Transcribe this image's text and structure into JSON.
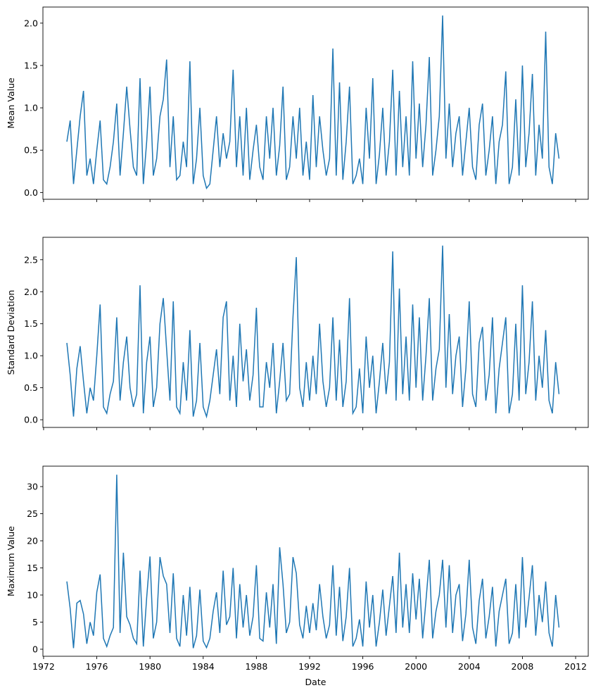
{
  "chart_data": [
    {
      "type": "line",
      "ylabel": "Mean Value",
      "x": [
        1973.75,
        1974,
        1974.25,
        1974.5,
        1974.75,
        1975,
        1975.25,
        1975.5,
        1975.75,
        1976,
        1976.25,
        1976.5,
        1976.75,
        1977,
        1977.25,
        1977.5,
        1977.75,
        1978,
        1978.25,
        1978.5,
        1978.75,
        1979,
        1979.25,
        1979.5,
        1979.75,
        1980,
        1980.25,
        1980.5,
        1980.75,
        1981,
        1981.25,
        1981.5,
        1981.75,
        1982,
        1982.25,
        1982.5,
        1982.75,
        1983,
        1983.25,
        1983.5,
        1983.75,
        1984,
        1984.25,
        1984.5,
        1984.75,
        1985,
        1985.25,
        1985.5,
        1985.75,
        1986,
        1986.25,
        1986.5,
        1986.75,
        1987,
        1987.25,
        1987.5,
        1987.75,
        1988,
        1988.25,
        1988.5,
        1988.75,
        1989,
        1989.25,
        1989.5,
        1989.75,
        1990,
        1990.25,
        1990.5,
        1990.75,
        1991,
        1991.25,
        1991.5,
        1991.75,
        1992,
        1992.25,
        1992.5,
        1992.75,
        1993,
        1993.25,
        1993.5,
        1993.75,
        1994,
        1994.25,
        1994.5,
        1994.75,
        1995,
        1995.25,
        1995.5,
        1995.75,
        1996,
        1996.25,
        1996.5,
        1996.75,
        1997,
        1997.25,
        1997.5,
        1997.75,
        1998,
        1998.25,
        1998.5,
        1998.75,
        1999,
        1999.25,
        1999.5,
        1999.75,
        2000,
        2000.25,
        2000.5,
        2000.75,
        2001,
        2001.25,
        2001.5,
        2001.75,
        2002,
        2002.25,
        2002.5,
        2002.75,
        2003,
        2003.25,
        2003.5,
        2003.75,
        2004,
        2004.25,
        2004.5,
        2004.75,
        2005,
        2005.25,
        2005.5,
        2005.75,
        2006,
        2006.25,
        2006.5,
        2006.75,
        2007,
        2007.25,
        2007.5,
        2007.75,
        2008,
        2008.25,
        2008.5,
        2008.75,
        2009,
        2009.25,
        2009.5,
        2009.75,
        2010,
        2010.25,
        2010.5,
        2010.75
      ],
      "series": [
        {
          "name": "Mean Value",
          "color": "#1f77b4",
          "values": [
            0.6,
            0.85,
            0.1,
            0.5,
            0.9,
            1.2,
            0.2,
            0.4,
            0.1,
            0.5,
            0.85,
            0.15,
            0.1,
            0.3,
            0.6,
            1.05,
            0.2,
            0.7,
            1.25,
            0.75,
            0.3,
            0.2,
            1.35,
            0.1,
            0.6,
            1.25,
            0.2,
            0.4,
            0.9,
            1.1,
            1.57,
            0.3,
            0.9,
            0.15,
            0.2,
            0.6,
            0.3,
            1.55,
            0.1,
            0.4,
            1.0,
            0.2,
            0.05,
            0.1,
            0.5,
            0.9,
            0.3,
            0.7,
            0.4,
            0.6,
            1.45,
            0.3,
            0.9,
            0.2,
            1.0,
            0.15,
            0.5,
            0.8,
            0.3,
            0.15,
            0.9,
            0.4,
            1.0,
            0.2,
            0.55,
            1.25,
            0.15,
            0.3,
            0.9,
            0.4,
            1.0,
            0.2,
            0.6,
            0.15,
            1.15,
            0.3,
            0.9,
            0.5,
            0.2,
            0.4,
            1.7,
            0.2,
            1.3,
            0.15,
            0.6,
            1.25,
            0.1,
            0.2,
            0.4,
            0.1,
            1.0,
            0.4,
            1.35,
            0.1,
            0.45,
            1.0,
            0.2,
            0.6,
            1.45,
            0.2,
            1.2,
            0.3,
            0.9,
            0.2,
            1.55,
            0.4,
            1.05,
            0.3,
            0.8,
            1.6,
            0.2,
            0.5,
            0.9,
            2.09,
            0.4,
            1.05,
            0.3,
            0.7,
            0.9,
            0.2,
            0.6,
            1.0,
            0.3,
            0.15,
            0.8,
            1.05,
            0.2,
            0.5,
            0.9,
            0.1,
            0.6,
            0.8,
            1.43,
            0.1,
            0.3,
            1.1,
            0.2,
            1.5,
            0.3,
            0.7,
            1.4,
            0.2,
            0.8,
            0.4,
            1.9,
            0.3,
            0.1,
            0.7,
            0.4
          ]
        }
      ],
      "xlim": [
        1971.95,
        2012.95
      ],
      "xticks": [
        1972,
        1976,
        1980,
        1984,
        1988,
        1992,
        1996,
        2000,
        2004,
        2008,
        2012
      ],
      "ylim": [
        -0.08,
        2.19
      ],
      "yticks": [
        {
          "value": 0,
          "label": "0.0"
        },
        {
          "value": 0.5,
          "label": "0.5"
        },
        {
          "value": 1,
          "label": "1.0"
        },
        {
          "value": 1.5,
          "label": "1.5"
        },
        {
          "value": 2,
          "label": "2.0"
        }
      ]
    },
    {
      "type": "line",
      "ylabel": "Standard Deviation",
      "x": [
        1973.75,
        1974,
        1974.25,
        1974.5,
        1974.75,
        1975,
        1975.25,
        1975.5,
        1975.75,
        1976,
        1976.25,
        1976.5,
        1976.75,
        1977,
        1977.25,
        1977.5,
        1977.75,
        1978,
        1978.25,
        1978.5,
        1978.75,
        1979,
        1979.25,
        1979.5,
        1979.75,
        1980,
        1980.25,
        1980.5,
        1980.75,
        1981,
        1981.25,
        1981.5,
        1981.75,
        1982,
        1982.25,
        1982.5,
        1982.75,
        1983,
        1983.25,
        1983.5,
        1983.75,
        1984,
        1984.25,
        1984.5,
        1984.75,
        1985,
        1985.25,
        1985.5,
        1985.75,
        1986,
        1986.25,
        1986.5,
        1986.75,
        1987,
        1987.25,
        1987.5,
        1987.75,
        1988,
        1988.25,
        1988.5,
        1988.75,
        1989,
        1989.25,
        1989.5,
        1989.75,
        1990,
        1990.25,
        1990.5,
        1990.75,
        1991,
        1991.25,
        1991.5,
        1991.75,
        1992,
        1992.25,
        1992.5,
        1992.75,
        1993,
        1993.25,
        1993.5,
        1993.75,
        1994,
        1994.25,
        1994.5,
        1994.75,
        1995,
        1995.25,
        1995.5,
        1995.75,
        1996,
        1996.25,
        1996.5,
        1996.75,
        1997,
        1997.25,
        1997.5,
        1997.75,
        1998,
        1998.25,
        1998.5,
        1998.75,
        1999,
        1999.25,
        1999.5,
        1999.75,
        2000,
        2000.25,
        2000.5,
        2000.75,
        2001,
        2001.25,
        2001.5,
        2001.75,
        2002,
        2002.25,
        2002.5,
        2002.75,
        2003,
        2003.25,
        2003.5,
        2003.75,
        2004,
        2004.25,
        2004.5,
        2004.75,
        2005,
        2005.25,
        2005.5,
        2005.75,
        2006,
        2006.25,
        2006.5,
        2006.75,
        2007,
        2007.25,
        2007.5,
        2007.75,
        2008,
        2008.25,
        2008.5,
        2008.75,
        2009,
        2009.25,
        2009.5,
        2009.75,
        2010,
        2010.25,
        2010.5,
        2010.75
      ],
      "series": [
        {
          "name": "Standard Deviation",
          "color": "#1f77b4",
          "values": [
            1.2,
            0.7,
            0.05,
            0.8,
            1.15,
            0.6,
            0.1,
            0.5,
            0.3,
            1.0,
            1.8,
            0.2,
            0.1,
            0.4,
            0.6,
            1.6,
            0.3,
            0.9,
            1.3,
            0.5,
            0.2,
            0.4,
            2.1,
            0.1,
            0.9,
            1.3,
            0.2,
            0.5,
            1.5,
            1.9,
            1.1,
            0.3,
            1.85,
            0.2,
            0.1,
            0.9,
            0.3,
            1.4,
            0.05,
            0.3,
            1.2,
            0.2,
            0.05,
            0.3,
            0.7,
            1.1,
            0.4,
            1.6,
            1.85,
            0.3,
            1.0,
            0.2,
            1.5,
            0.6,
            1.1,
            0.3,
            0.7,
            1.75,
            0.2,
            0.2,
            0.9,
            0.5,
            1.2,
            0.1,
            0.6,
            1.2,
            0.3,
            0.4,
            1.6,
            2.54,
            0.5,
            0.2,
            0.9,
            0.3,
            1.0,
            0.4,
            1.5,
            0.6,
            0.2,
            0.5,
            1.6,
            0.3,
            1.25,
            0.2,
            0.6,
            1.9,
            0.1,
            0.2,
            0.8,
            0.1,
            1.3,
            0.5,
            1.0,
            0.1,
            0.6,
            1.2,
            0.4,
            0.9,
            2.63,
            0.3,
            2.05,
            0.4,
            1.3,
            0.3,
            1.8,
            0.5,
            1.6,
            0.3,
            1.0,
            1.9,
            0.3,
            0.8,
            1.1,
            2.72,
            0.5,
            1.65,
            0.4,
            1.0,
            1.3,
            0.2,
            0.8,
            1.85,
            0.4,
            0.2,
            1.2,
            1.45,
            0.3,
            0.7,
            1.6,
            0.1,
            0.8,
            1.2,
            1.6,
            0.1,
            0.4,
            1.5,
            0.3,
            2.1,
            0.4,
            0.9,
            1.85,
            0.3,
            1.0,
            0.5,
            1.4,
            0.3,
            0.1,
            0.9,
            0.4
          ]
        }
      ],
      "xlim": [
        1971.95,
        2012.95
      ],
      "xticks": [
        1972,
        1976,
        1980,
        1984,
        1988,
        1992,
        1996,
        2000,
        2004,
        2008,
        2012
      ],
      "ylim": [
        -0.12,
        2.85
      ],
      "yticks": [
        {
          "value": 0,
          "label": "0.0"
        },
        {
          "value": 0.5,
          "label": "0.5"
        },
        {
          "value": 1,
          "label": "1.0"
        },
        {
          "value": 1.5,
          "label": "1.5"
        },
        {
          "value": 2,
          "label": "2.0"
        },
        {
          "value": 2.5,
          "label": "2.5"
        }
      ]
    },
    {
      "type": "line",
      "ylabel": "Maximum Value",
      "xlabel": "Date",
      "x": [
        1973.75,
        1974,
        1974.25,
        1974.5,
        1974.75,
        1975,
        1975.25,
        1975.5,
        1975.75,
        1976,
        1976.25,
        1976.5,
        1976.75,
        1977,
        1977.25,
        1977.5,
        1977.75,
        1978,
        1978.25,
        1978.5,
        1978.75,
        1979,
        1979.25,
        1979.5,
        1979.75,
        1980,
        1980.25,
        1980.5,
        1980.75,
        1981,
        1981.25,
        1981.5,
        1981.75,
        1982,
        1982.25,
        1982.5,
        1982.75,
        1983,
        1983.25,
        1983.5,
        1983.75,
        1984,
        1984.25,
        1984.5,
        1984.75,
        1985,
        1985.25,
        1985.5,
        1985.75,
        1986,
        1986.25,
        1986.5,
        1986.75,
        1987,
        1987.25,
        1987.5,
        1987.75,
        1988,
        1988.25,
        1988.5,
        1988.75,
        1989,
        1989.25,
        1989.5,
        1989.75,
        1990,
        1990.25,
        1990.5,
        1990.75,
        1991,
        1991.25,
        1991.5,
        1991.75,
        1992,
        1992.25,
        1992.5,
        1992.75,
        1993,
        1993.25,
        1993.5,
        1993.75,
        1994,
        1994.25,
        1994.5,
        1994.75,
        1995,
        1995.25,
        1995.5,
        1995.75,
        1996,
        1996.25,
        1996.5,
        1996.75,
        1997,
        1997.25,
        1997.5,
        1997.75,
        1998,
        1998.25,
        1998.5,
        1998.75,
        1999,
        1999.25,
        1999.5,
        1999.75,
        2000,
        2000.25,
        2000.5,
        2000.75,
        2001,
        2001.25,
        2001.5,
        2001.75,
        2002,
        2002.25,
        2002.5,
        2002.75,
        2003,
        2003.25,
        2003.5,
        2003.75,
        2004,
        2004.25,
        2004.5,
        2004.75,
        2005,
        2005.25,
        2005.5,
        2005.75,
        2006,
        2006.25,
        2006.5,
        2006.75,
        2007,
        2007.25,
        2007.5,
        2007.75,
        2008,
        2008.25,
        2008.5,
        2008.75,
        2009,
        2009.25,
        2009.5,
        2009.75,
        2010,
        2010.25,
        2010.5,
        2010.75
      ],
      "series": [
        {
          "name": "Maximum Value",
          "color": "#1f77b4",
          "values": [
            12.5,
            7.5,
            0.2,
            8.5,
            9.0,
            6.5,
            1.0,
            5.0,
            2.5,
            10.5,
            13.8,
            2.0,
            0.5,
            2.5,
            4.0,
            32.2,
            3.0,
            17.8,
            6.0,
            4.5,
            2.0,
            1.0,
            14.5,
            0.5,
            9.5,
            17.1,
            2.0,
            5.0,
            17.0,
            13.5,
            12.0,
            3.0,
            14.0,
            2.0,
            0.5,
            10.0,
            2.5,
            11.5,
            0.2,
            2.5,
            11.0,
            1.5,
            0.3,
            2.0,
            7.0,
            10.5,
            3.0,
            14.5,
            4.5,
            6.0,
            15.0,
            2.0,
            12.0,
            4.0,
            10.0,
            2.5,
            6.0,
            15.5,
            2.0,
            1.5,
            10.5,
            4.0,
            12.0,
            1.0,
            18.8,
            12.0,
            3.0,
            5.0,
            17.0,
            14.0,
            4.5,
            2.0,
            8.0,
            3.0,
            8.5,
            3.5,
            12.0,
            6.0,
            2.0,
            4.5,
            15.5,
            2.5,
            11.5,
            1.5,
            6.0,
            15.0,
            0.5,
            2.0,
            5.5,
            0.5,
            12.5,
            4.0,
            10.0,
            0.5,
            5.0,
            11.0,
            2.5,
            8.0,
            13.5,
            3.0,
            17.8,
            4.0,
            12.0,
            3.0,
            14.0,
            5.5,
            13.0,
            2.0,
            9.0,
            16.5,
            2.0,
            7.0,
            10.0,
            16.5,
            4.0,
            15.5,
            3.0,
            10.0,
            12.0,
            1.5,
            6.5,
            16.5,
            4.0,
            1.0,
            9.0,
            13.0,
            2.0,
            6.0,
            11.5,
            0.5,
            7.0,
            10.0,
            13.0,
            1.0,
            3.0,
            12.0,
            2.0,
            17.0,
            4.0,
            9.5,
            15.5,
            2.5,
            10.0,
            5.0,
            12.5,
            3.0,
            0.5,
            10.0,
            4.0
          ]
        }
      ],
      "xlim": [
        1971.95,
        2012.95
      ],
      "xticks": [
        1972,
        1976,
        1980,
        1984,
        1988,
        1992,
        1996,
        2000,
        2004,
        2008,
        2012
      ],
      "ylim": [
        -1.3,
        33.77
      ],
      "yticks": [
        0,
        5,
        10,
        15,
        20,
        25,
        30
      ]
    }
  ]
}
